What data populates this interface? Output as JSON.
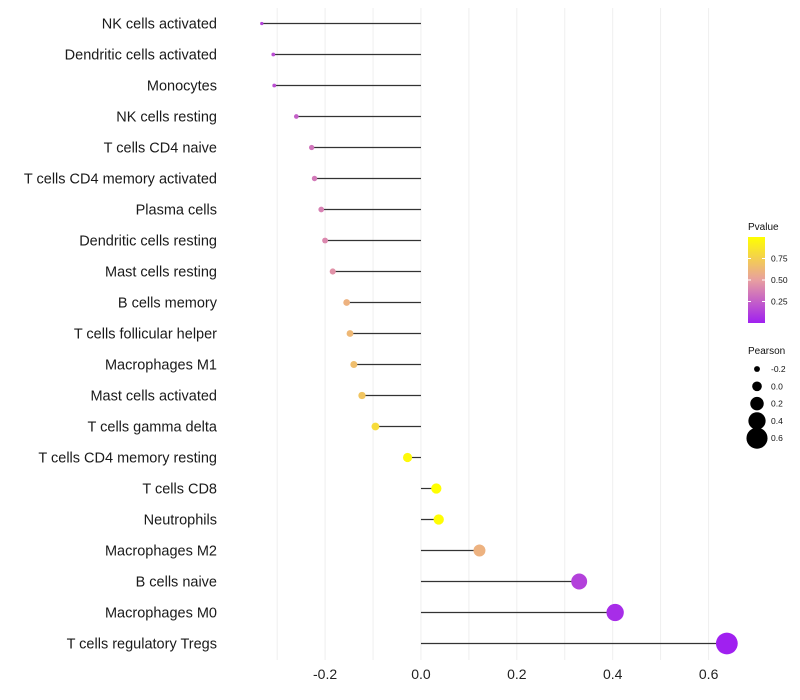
{
  "chart_data": {
    "type": "lollipop",
    "categories": [
      "NK cells activated",
      "Dendritic cells activated",
      "Monocytes",
      "NK cells resting",
      "T cells CD4 naive",
      "T cells CD4 memory activated",
      "Plasma cells",
      "Dendritic cells resting",
      "Mast cells resting",
      "B cells memory",
      "T cells follicular helper",
      "Macrophages M1",
      "Mast cells activated",
      "T cells gamma delta",
      "T cells CD4 memory resting",
      "T cells CD8",
      "Neutrophils",
      "Macrophages M2",
      "B cells naive",
      "Macrophages M0",
      "T cells regulatory  Tregs"
    ],
    "pearson": [
      -0.332,
      -0.308,
      -0.306,
      -0.26,
      -0.228,
      -0.222,
      -0.208,
      -0.2,
      -0.184,
      -0.155,
      -0.148,
      -0.14,
      -0.123,
      -0.095,
      -0.028,
      0.032,
      0.037,
      0.122,
      0.33,
      0.405,
      0.638
    ],
    "pvalue": [
      0.14,
      0.18,
      0.19,
      0.25,
      0.33,
      0.35,
      0.38,
      0.41,
      0.45,
      0.6,
      0.63,
      0.66,
      0.7,
      0.82,
      0.97,
      1.0,
      0.99,
      0.6,
      0.13,
      0.05,
      0.0
    ],
    "xaxis": {
      "range": [
        -0.415,
        0.655
      ],
      "ticks": [
        -0.2,
        0.0,
        0.2,
        0.4,
        0.6
      ],
      "tick_labels": [
        "-0.2",
        "0.0",
        "0.2",
        "0.4",
        "0.6"
      ]
    },
    "grid": true,
    "legend_pvalue": {
      "title": "Pvalue",
      "range": [
        0.0,
        1.0
      ],
      "ticks": [
        0.25,
        0.5,
        0.75
      ],
      "tick_labels": [
        "0.25",
        "0.50",
        "0.75"
      ],
      "colors": {
        "low": "#a020f0",
        "mid": "#e89fa0",
        "high": "#ffff00"
      }
    },
    "legend_pearson": {
      "title": "Pearson",
      "values": [
        -0.2,
        0.0,
        0.2,
        0.4,
        0.6
      ],
      "labels": [
        "-0.2",
        "0.0",
        "0.2",
        "0.4",
        "0.6"
      ]
    },
    "colors": {
      "segment": "#333333",
      "legend_key": "#000000",
      "grid": "#ebebeb"
    }
  }
}
